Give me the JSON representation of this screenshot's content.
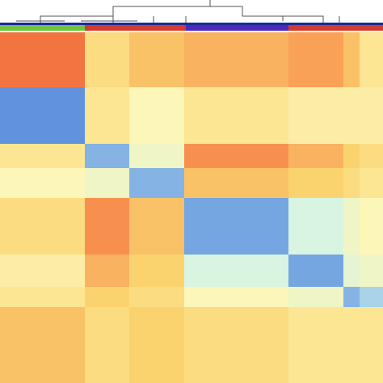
{
  "chart_data": {
    "type": "heatmap",
    "values": [
      [
        0.9,
        0.55,
        0.65,
        0.7,
        0.75,
        0.65,
        0.5
      ],
      [
        0.05,
        0.5,
        0.4,
        0.5,
        0.45,
        0.45,
        0.45
      ],
      [
        0.5,
        0.1,
        0.35,
        0.8,
        0.7,
        0.6,
        0.55
      ],
      [
        0.4,
        0.35,
        0.1,
        0.65,
        0.6,
        0.55,
        0.5
      ],
      [
        0.55,
        0.8,
        0.65,
        0.08,
        0.25,
        0.35,
        0.4
      ],
      [
        0.45,
        0.7,
        0.6,
        0.25,
        0.08,
        0.3,
        0.35
      ],
      [
        0.5,
        0.6,
        0.55,
        0.4,
        0.35,
        0.1,
        0.15
      ],
      [
        0.65,
        0.55,
        0.6,
        0.55,
        0.5,
        0.5,
        0.5
      ]
    ],
    "colorscale": [
      "#3b72d9",
      "#cdf3ee",
      "#fcf6b8",
      "#fbd36e",
      "#f7904f",
      "#ec5a32"
    ]
  }
}
